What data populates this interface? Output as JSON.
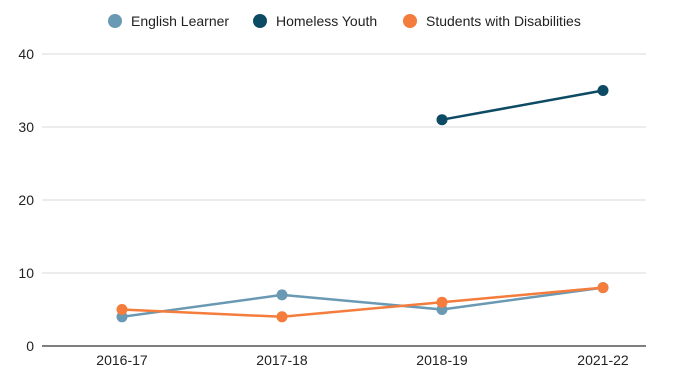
{
  "chart_data": {
    "type": "line",
    "title": "",
    "xlabel": "",
    "ylabel": "",
    "categories": [
      "2016-17",
      "2017-18",
      "2018-19",
      "2021-22"
    ],
    "ylim": [
      0,
      40
    ],
    "yticks": [
      0,
      10,
      20,
      30,
      40
    ],
    "grid": true,
    "legend_position": "top",
    "series": [
      {
        "name": "English Learner",
        "color": "#6a99b3",
        "values": [
          4,
          7,
          5,
          8
        ]
      },
      {
        "name": "Homeless Youth",
        "color": "#0d4a63",
        "values": [
          null,
          null,
          31,
          35
        ]
      },
      {
        "name": "Students with Disabilities",
        "color": "#f47c3c",
        "values": [
          5,
          4,
          6,
          8
        ]
      }
    ]
  }
}
